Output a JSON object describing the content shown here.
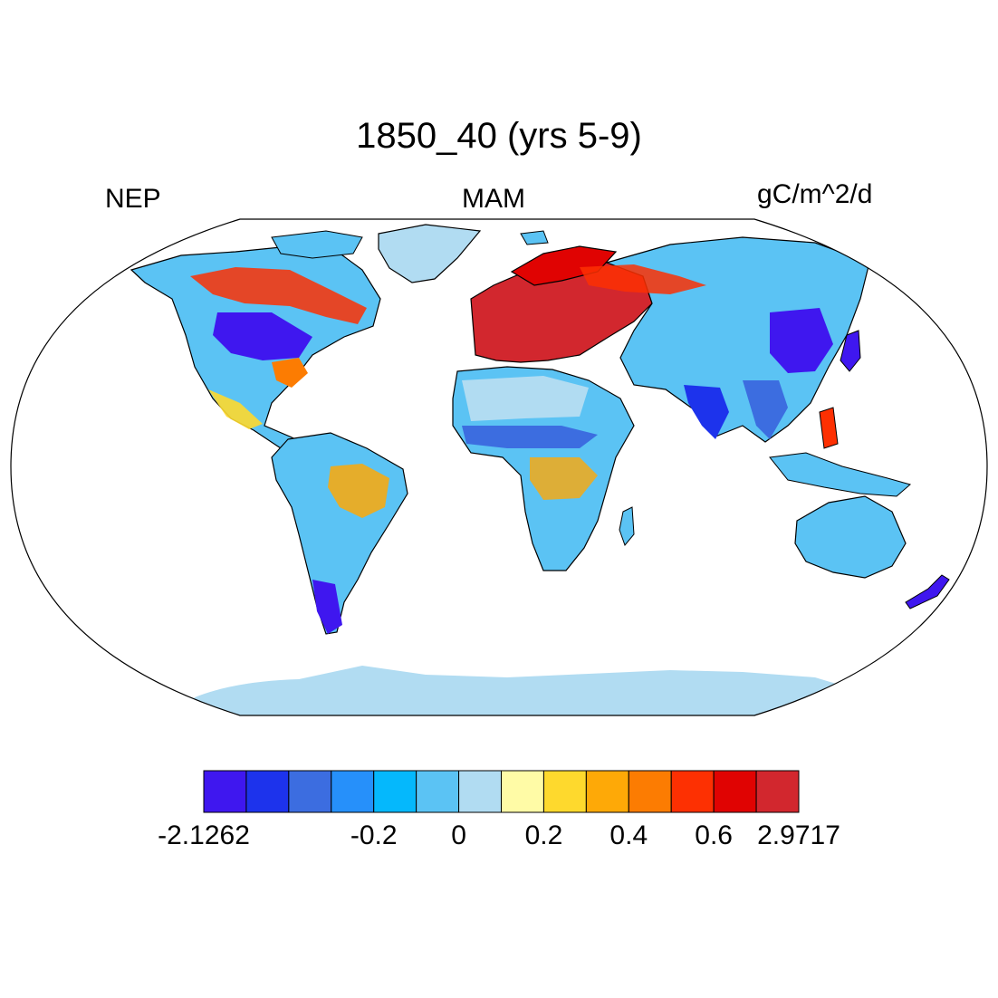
{
  "title": "1850_40 (yrs 5-9)",
  "left_label": "NEP",
  "center_label": "MAM",
  "right_label": "gC/m^2/d",
  "projection": "Robinson",
  "colorbar": {
    "colors": [
      "#3f17ef",
      "#1d33ec",
      "#3c6de0",
      "#2690fa",
      "#05b8fc",
      "#5bc3f4",
      "#b1dcf2",
      "#fffba6",
      "#fed92d",
      "#fea907",
      "#fc7c02",
      "#fd3002",
      "#e00302",
      "#d2272e"
    ],
    "labels": [
      {
        "text": "-2.1262",
        "boundary": 0
      },
      {
        "text": "-0.2",
        "boundary": 4
      },
      {
        "text": "0",
        "boundary": 6
      },
      {
        "text": "0.2",
        "boundary": 8
      },
      {
        "text": "0.4",
        "boundary": 10
      },
      {
        "text": "0.6",
        "boundary": 12
      },
      {
        "text": "2.9717",
        "boundary": 14
      }
    ]
  }
}
